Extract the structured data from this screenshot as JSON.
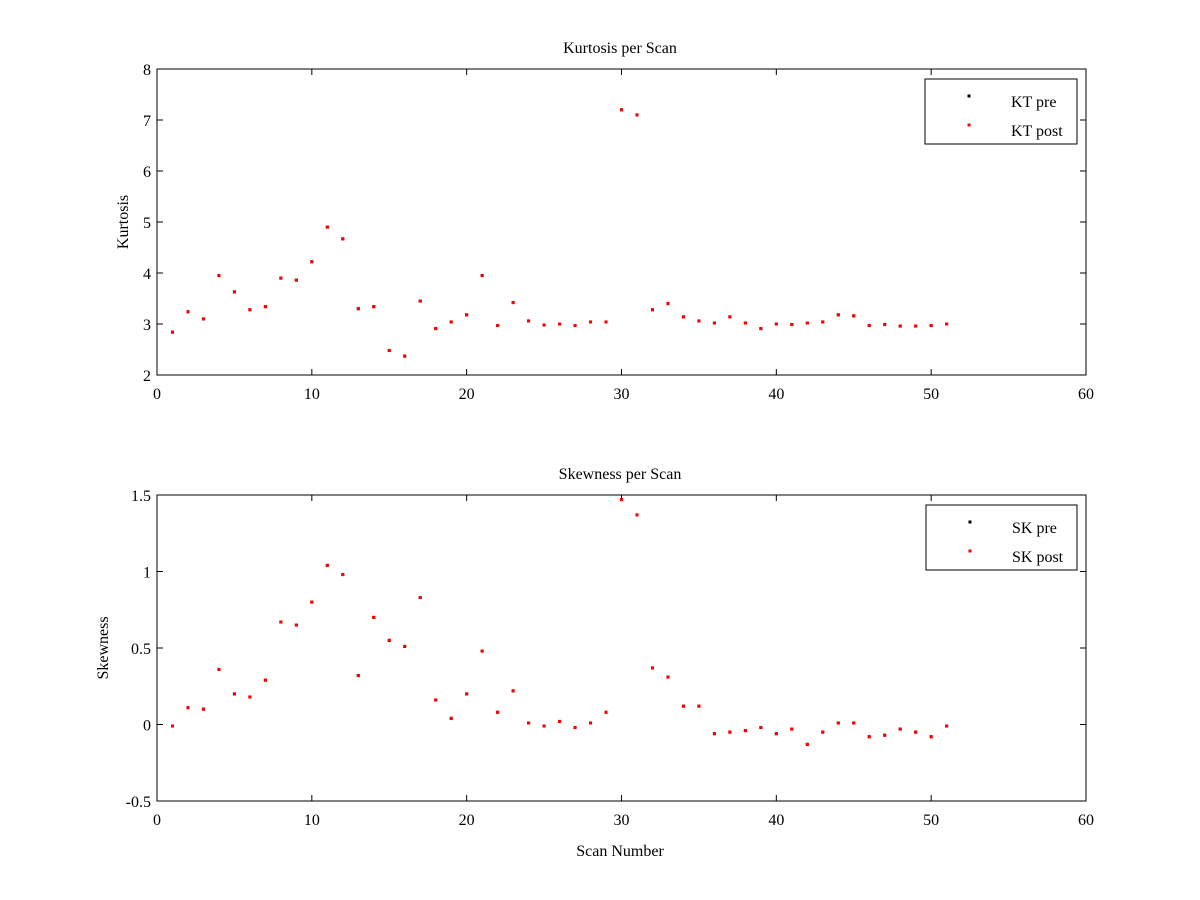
{
  "chart_data": [
    {
      "type": "scatter",
      "title": "Kurtosis per Scan",
      "xlabel": "",
      "ylabel": "Kurtosis",
      "xlim": [
        0,
        60
      ],
      "ylim": [
        2,
        8
      ],
      "xticks": [
        0,
        10,
        20,
        30,
        40,
        50,
        60
      ],
      "yticks": [
        2,
        3,
        4,
        5,
        6,
        7,
        8
      ],
      "legend_position": "top-right",
      "series": [
        {
          "name": "KT pre",
          "color": "#000000",
          "marker": "point",
          "x": [
            1,
            2,
            3,
            4,
            5,
            6,
            7,
            8,
            9,
            10,
            11,
            12,
            13,
            14,
            15,
            16,
            17,
            18,
            19,
            20,
            21,
            22,
            23,
            24,
            25,
            26,
            27,
            28,
            29,
            30,
            31,
            32,
            33,
            34,
            35,
            36,
            37,
            38,
            39,
            40,
            41,
            42,
            43,
            44,
            45,
            46,
            47,
            48,
            49,
            50,
            51
          ],
          "y": [
            2.84,
            3.24,
            3.1,
            3.95,
            3.63,
            3.28,
            3.34,
            3.9,
            3.86,
            4.22,
            4.9,
            4.67,
            3.3,
            3.34,
            2.48,
            2.37,
            3.45,
            2.91,
            3.04,
            3.18,
            3.95,
            2.97,
            3.42,
            3.06,
            2.98,
            3.0,
            2.97,
            3.04,
            3.04,
            7.2,
            7.1,
            3.28,
            3.4,
            3.14,
            3.06,
            3.02,
            3.14,
            3.02,
            2.91,
            3.0,
            2.99,
            3.02,
            3.04,
            3.18,
            3.16,
            2.97,
            2.99,
            2.96,
            2.96,
            2.97,
            3.0
          ]
        },
        {
          "name": "KT post",
          "color": "#ff0000",
          "marker": "point",
          "x": [
            1,
            2,
            3,
            4,
            5,
            6,
            7,
            8,
            9,
            10,
            11,
            12,
            13,
            14,
            15,
            16,
            17,
            18,
            19,
            20,
            21,
            22,
            23,
            24,
            25,
            26,
            27,
            28,
            29,
            30,
            31,
            32,
            33,
            34,
            35,
            36,
            37,
            38,
            39,
            40,
            41,
            42,
            43,
            44,
            45,
            46,
            47,
            48,
            49,
            50,
            51
          ],
          "y": [
            2.84,
            3.24,
            3.1,
            3.95,
            3.63,
            3.28,
            3.34,
            3.9,
            3.86,
            4.22,
            4.9,
            4.67,
            3.3,
            3.34,
            2.48,
            2.37,
            3.45,
            2.91,
            3.04,
            3.18,
            3.95,
            2.97,
            3.42,
            3.06,
            2.98,
            3.0,
            2.97,
            3.04,
            3.04,
            7.2,
            7.1,
            3.28,
            3.4,
            3.14,
            3.06,
            3.02,
            3.14,
            3.02,
            2.91,
            3.0,
            2.99,
            3.02,
            3.04,
            3.18,
            3.16,
            2.97,
            2.99,
            2.96,
            2.96,
            2.97,
            3.0
          ]
        }
      ]
    },
    {
      "type": "scatter",
      "title": "Skewness per Scan",
      "xlabel": "Scan Number",
      "ylabel": "Skewness",
      "xlim": [
        0,
        60
      ],
      "ylim": [
        -0.5,
        1.5
      ],
      "xticks": [
        0,
        10,
        20,
        30,
        40,
        50,
        60
      ],
      "yticks": [
        -0.5,
        0,
        0.5,
        1,
        1.5
      ],
      "legend_position": "top-right",
      "series": [
        {
          "name": "SK pre",
          "color": "#000000",
          "marker": "point",
          "x": [
            1,
            2,
            3,
            4,
            5,
            6,
            7,
            8,
            9,
            10,
            11,
            12,
            13,
            14,
            15,
            16,
            17,
            18,
            19,
            20,
            21,
            22,
            23,
            24,
            25,
            26,
            27,
            28,
            29,
            30,
            31,
            32,
            33,
            34,
            35,
            36,
            37,
            38,
            39,
            40,
            41,
            42,
            43,
            44,
            45,
            46,
            47,
            48,
            49,
            50,
            51
          ],
          "y": [
            -0.01,
            0.11,
            0.1,
            0.36,
            0.2,
            0.18,
            0.29,
            0.67,
            0.65,
            0.8,
            1.04,
            0.98,
            0.32,
            0.7,
            0.55,
            0.51,
            0.83,
            0.16,
            0.04,
            0.2,
            0.48,
            0.08,
            0.22,
            0.01,
            -0.01,
            0.02,
            -0.02,
            0.01,
            0.08,
            1.47,
            1.37,
            0.37,
            0.31,
            0.12,
            0.12,
            -0.06,
            -0.05,
            -0.04,
            -0.02,
            -0.06,
            -0.03,
            -0.13,
            -0.05,
            0.01,
            0.01,
            -0.08,
            -0.07,
            -0.03,
            -0.05,
            -0.08,
            -0.01
          ]
        },
        {
          "name": "SK post",
          "color": "#ff0000",
          "marker": "point",
          "x": [
            1,
            2,
            3,
            4,
            5,
            6,
            7,
            8,
            9,
            10,
            11,
            12,
            13,
            14,
            15,
            16,
            17,
            18,
            19,
            20,
            21,
            22,
            23,
            24,
            25,
            26,
            27,
            28,
            29,
            30,
            31,
            32,
            33,
            34,
            35,
            36,
            37,
            38,
            39,
            40,
            41,
            42,
            43,
            44,
            45,
            46,
            47,
            48,
            49,
            50,
            51
          ],
          "y": [
            -0.01,
            0.11,
            0.1,
            0.36,
            0.2,
            0.18,
            0.29,
            0.67,
            0.65,
            0.8,
            1.04,
            0.98,
            0.32,
            0.7,
            0.55,
            0.51,
            0.83,
            0.16,
            0.04,
            0.2,
            0.48,
            0.08,
            0.22,
            0.01,
            -0.01,
            0.02,
            -0.02,
            0.01,
            0.08,
            1.47,
            1.37,
            0.37,
            0.31,
            0.12,
            0.12,
            -0.06,
            -0.05,
            -0.04,
            -0.02,
            -0.06,
            -0.03,
            -0.13,
            -0.05,
            0.01,
            0.01,
            -0.08,
            -0.07,
            -0.03,
            -0.05,
            -0.08,
            -0.01
          ]
        }
      ]
    }
  ]
}
